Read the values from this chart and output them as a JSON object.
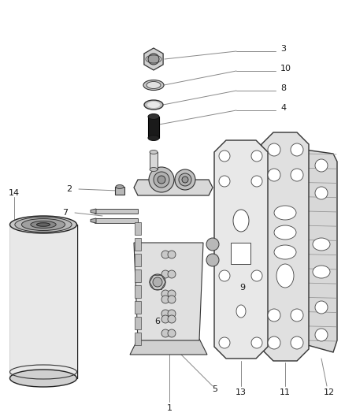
{
  "bg_color": "#ffffff",
  "dark_color": "#1a1a1a",
  "med_color": "#555555",
  "light_color": "#aaaaaa",
  "fill_light": "#f0f0f0",
  "fill_mid": "#d8d8d8",
  "fill_dark": "#b0b0b0",
  "font_size": 8,
  "label_font_size": 8
}
